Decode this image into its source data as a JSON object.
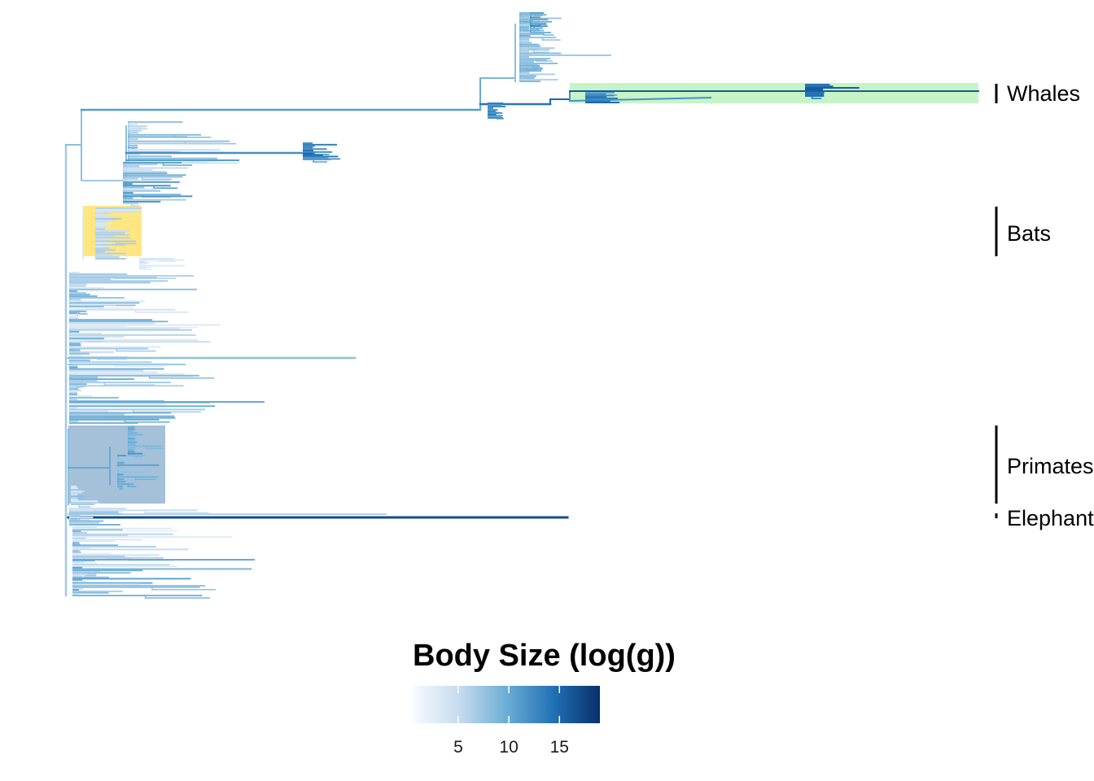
{
  "chart_data": {
    "type": "tree",
    "color_scale": {
      "title": "Body Size (log(g))",
      "min": 0.5,
      "max": 19,
      "ticks": [
        5,
        10,
        15
      ],
      "colors": [
        "#f7fbff",
        "#c6dbef",
        "#6baed6",
        "#2171b5",
        "#08306b"
      ]
    },
    "highlighted_clades": [
      {
        "label": "Whales",
        "color": "#b4f0b4"
      },
      {
        "label": "Bats",
        "color": "#ffe060"
      },
      {
        "label": "Primates",
        "color": "#7fa5c9"
      },
      {
        "label": "Elephants",
        "color": "#ffffff"
      }
    ]
  }
}
